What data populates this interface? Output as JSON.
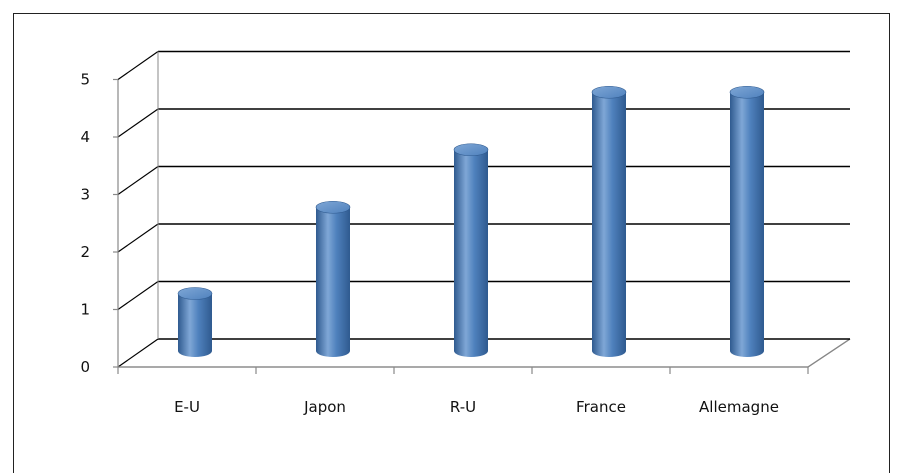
{
  "chart_data": {
    "type": "bar",
    "style": "3d-cylinder",
    "categories": [
      "E-U",
      "Japon",
      "R-U",
      "France",
      "Allemagne"
    ],
    "values": [
      1,
      2.5,
      3.5,
      4.5,
      4.5
    ],
    "yticks": [
      "0",
      "1",
      "2",
      "3",
      "4",
      "5"
    ],
    "ylim": [
      0,
      5
    ],
    "grid": true,
    "legend": "none",
    "colors": {
      "bar": "#4f81bd",
      "bar_dark": "#2f5a8f",
      "bar_light": "#7fa7d6",
      "grid": "#000000"
    }
  }
}
